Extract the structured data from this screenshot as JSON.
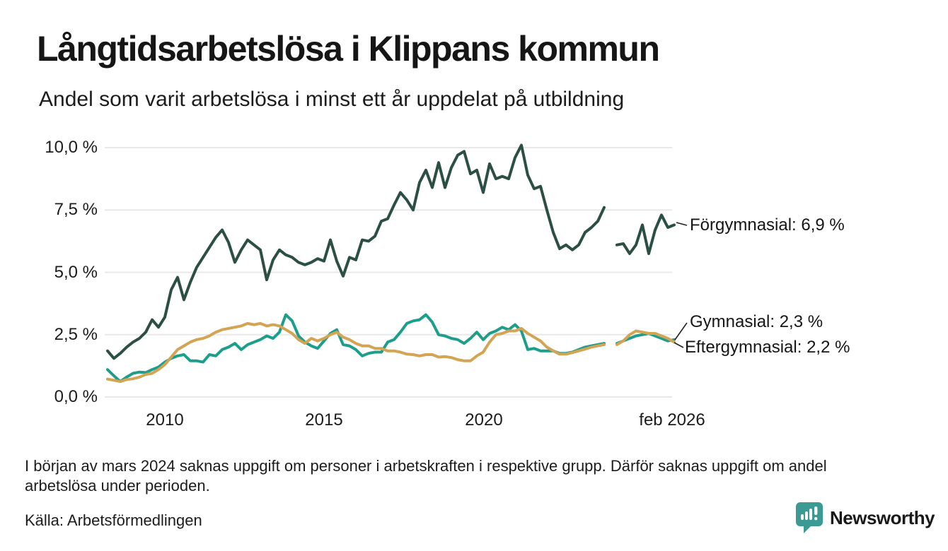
{
  "footnote": "I början av mars 2024 saknas uppgift om personer i arbetskraften i respektive grupp. Därför saknas uppgift om andel arbetslösa under perioden.",
  "source": "Källa: Arbetsförmedlingen",
  "branding": {
    "name": "Newsworthy",
    "color": "#3c9a94",
    "icon": "speech-bubble-bar-chart-icon"
  },
  "chart_data": {
    "type": "line",
    "title": "Långtidsarbetslösa i Klippans kommun",
    "subtitle": "Andel som varit arbetslösa i minst ett år uppdelat på utbildning",
    "grid": true,
    "legend_position": "right-end-annotations",
    "ylim": [
      0,
      10.5
    ],
    "ylabel": "",
    "xlabel": "",
    "yticks": [
      {
        "v": 10,
        "label": "10,0 %"
      },
      {
        "v": 7.5,
        "label": "7,5 %"
      },
      {
        "v": 5,
        "label": "5,0 %"
      },
      {
        "v": 2.5,
        "label": "2,5 %"
      },
      {
        "v": 0,
        "label": "0,0 %"
      }
    ],
    "xticks": [
      {
        "v": 2010,
        "label": "2010"
      },
      {
        "v": 2015,
        "label": "2015"
      },
      {
        "v": 2020,
        "label": "2020"
      },
      {
        "v": 2025.95,
        "label": "feb 2026"
      }
    ],
    "x_unit": "decimal year, monthly data, gap at mars 2024 encoded as null",
    "x_years": [
      2008.2,
      2008.4,
      2008.6,
      2008.8,
      2009.0,
      2009.2,
      2009.4,
      2009.6,
      2009.8,
      2010.0,
      2010.2,
      2010.4,
      2010.6,
      2010.8,
      2011.0,
      2011.2,
      2011.4,
      2011.6,
      2011.8,
      2012.0,
      2012.2,
      2012.4,
      2012.6,
      2012.8,
      2013.0,
      2013.2,
      2013.4,
      2013.6,
      2013.8,
      2014.0,
      2014.2,
      2014.4,
      2014.6,
      2014.8,
      2015.0,
      2015.2,
      2015.4,
      2015.6,
      2015.8,
      2016.0,
      2016.2,
      2016.4,
      2016.6,
      2016.8,
      2017.0,
      2017.2,
      2017.4,
      2017.6,
      2017.8,
      2018.0,
      2018.2,
      2018.4,
      2018.6,
      2018.8,
      2019.0,
      2019.2,
      2019.4,
      2019.6,
      2019.8,
      2020.0,
      2020.2,
      2020.4,
      2020.6,
      2020.8,
      2021.0,
      2021.2,
      2021.4,
      2021.6,
      2021.8,
      2022.0,
      2022.2,
      2022.4,
      2022.6,
      2022.8,
      2023.0,
      2023.2,
      2023.4,
      2023.6,
      2023.8,
      2024.0,
      2024.2,
      2024.4,
      2024.6,
      2024.8,
      2025.0,
      2025.2,
      2025.4,
      2025.6,
      2025.8,
      2026.0
    ],
    "series": [
      {
        "name": "Förgymnasial",
        "color": "#2b4f45",
        "end_label": "Förgymnasial: 6,9 %",
        "end_value": 6.9,
        "values": [
          1.85,
          1.55,
          1.75,
          2.0,
          2.2,
          2.35,
          2.6,
          3.1,
          2.8,
          3.2,
          4.3,
          4.8,
          3.9,
          4.6,
          5.2,
          5.6,
          6.0,
          6.4,
          6.7,
          6.2,
          5.4,
          5.9,
          6.3,
          6.1,
          5.9,
          4.7,
          5.5,
          5.9,
          5.7,
          5.6,
          5.4,
          5.3,
          5.4,
          5.55,
          5.45,
          6.3,
          5.45,
          4.85,
          5.6,
          5.5,
          6.3,
          6.25,
          6.45,
          7.05,
          7.15,
          7.7,
          8.2,
          7.9,
          7.5,
          8.6,
          9.1,
          8.4,
          9.4,
          8.4,
          9.2,
          9.7,
          9.85,
          8.95,
          9.1,
          8.2,
          9.35,
          8.75,
          8.85,
          8.75,
          9.6,
          10.1,
          8.9,
          8.35,
          8.45,
          7.5,
          6.6,
          5.95,
          6.1,
          5.9,
          6.1,
          6.6,
          6.8,
          7.05,
          7.6,
          null,
          6.1,
          6.15,
          5.75,
          6.1,
          6.9,
          5.75,
          6.7,
          7.3,
          6.8,
          6.9
        ]
      },
      {
        "name": "Gymnasial",
        "color": "#1d9e8b",
        "end_label": "Gymnasial: 2,3 %",
        "end_value": 2.3,
        "values": [
          1.1,
          0.85,
          0.62,
          0.8,
          0.95,
          1.0,
          0.98,
          1.1,
          1.2,
          1.4,
          1.55,
          1.65,
          1.7,
          1.45,
          1.45,
          1.4,
          1.7,
          1.65,
          1.9,
          2.0,
          2.15,
          1.9,
          2.1,
          2.2,
          2.3,
          2.45,
          2.35,
          2.6,
          3.3,
          3.05,
          2.45,
          2.2,
          2.05,
          1.95,
          2.25,
          2.55,
          2.7,
          2.1,
          2.05,
          1.9,
          1.65,
          1.75,
          1.8,
          1.8,
          2.2,
          2.3,
          2.6,
          2.95,
          3.05,
          3.1,
          3.3,
          3.0,
          2.5,
          2.45,
          2.35,
          2.3,
          2.15,
          2.35,
          2.6,
          2.3,
          2.55,
          2.65,
          2.8,
          2.7,
          2.9,
          2.65,
          1.9,
          1.95,
          1.85,
          1.85,
          1.85,
          1.75,
          1.75,
          1.8,
          1.9,
          2.0,
          2.05,
          2.1,
          2.15,
          null,
          2.15,
          2.25,
          2.35,
          2.45,
          2.5,
          2.55,
          2.45,
          2.35,
          2.25,
          2.3
        ]
      },
      {
        "name": "Eftergymnasial",
        "color": "#d3a454",
        "end_label": "Eftergymnasial: 2,2 %",
        "end_value": 2.2,
        "values": [
          0.72,
          0.67,
          0.62,
          0.7,
          0.73,
          0.8,
          0.9,
          0.95,
          1.1,
          1.3,
          1.6,
          1.9,
          2.05,
          2.2,
          2.3,
          2.35,
          2.45,
          2.6,
          2.7,
          2.75,
          2.8,
          2.85,
          2.95,
          2.9,
          2.95,
          2.85,
          2.9,
          2.85,
          2.7,
          2.55,
          2.3,
          2.15,
          2.35,
          2.25,
          2.35,
          2.5,
          2.6,
          2.4,
          2.3,
          2.15,
          2.05,
          2.05,
          1.95,
          1.95,
          1.85,
          1.85,
          1.8,
          1.72,
          1.7,
          1.65,
          1.7,
          1.7,
          1.6,
          1.62,
          1.58,
          1.5,
          1.45,
          1.45,
          1.65,
          1.8,
          2.2,
          2.5,
          2.55,
          2.65,
          2.65,
          2.75,
          2.55,
          2.4,
          2.25,
          2.0,
          1.85,
          1.72,
          1.72,
          1.78,
          1.85,
          1.92,
          2.0,
          2.05,
          2.1,
          null,
          2.1,
          2.25,
          2.5,
          2.65,
          2.6,
          2.55,
          2.55,
          2.45,
          2.35,
          2.2
        ]
      }
    ]
  }
}
